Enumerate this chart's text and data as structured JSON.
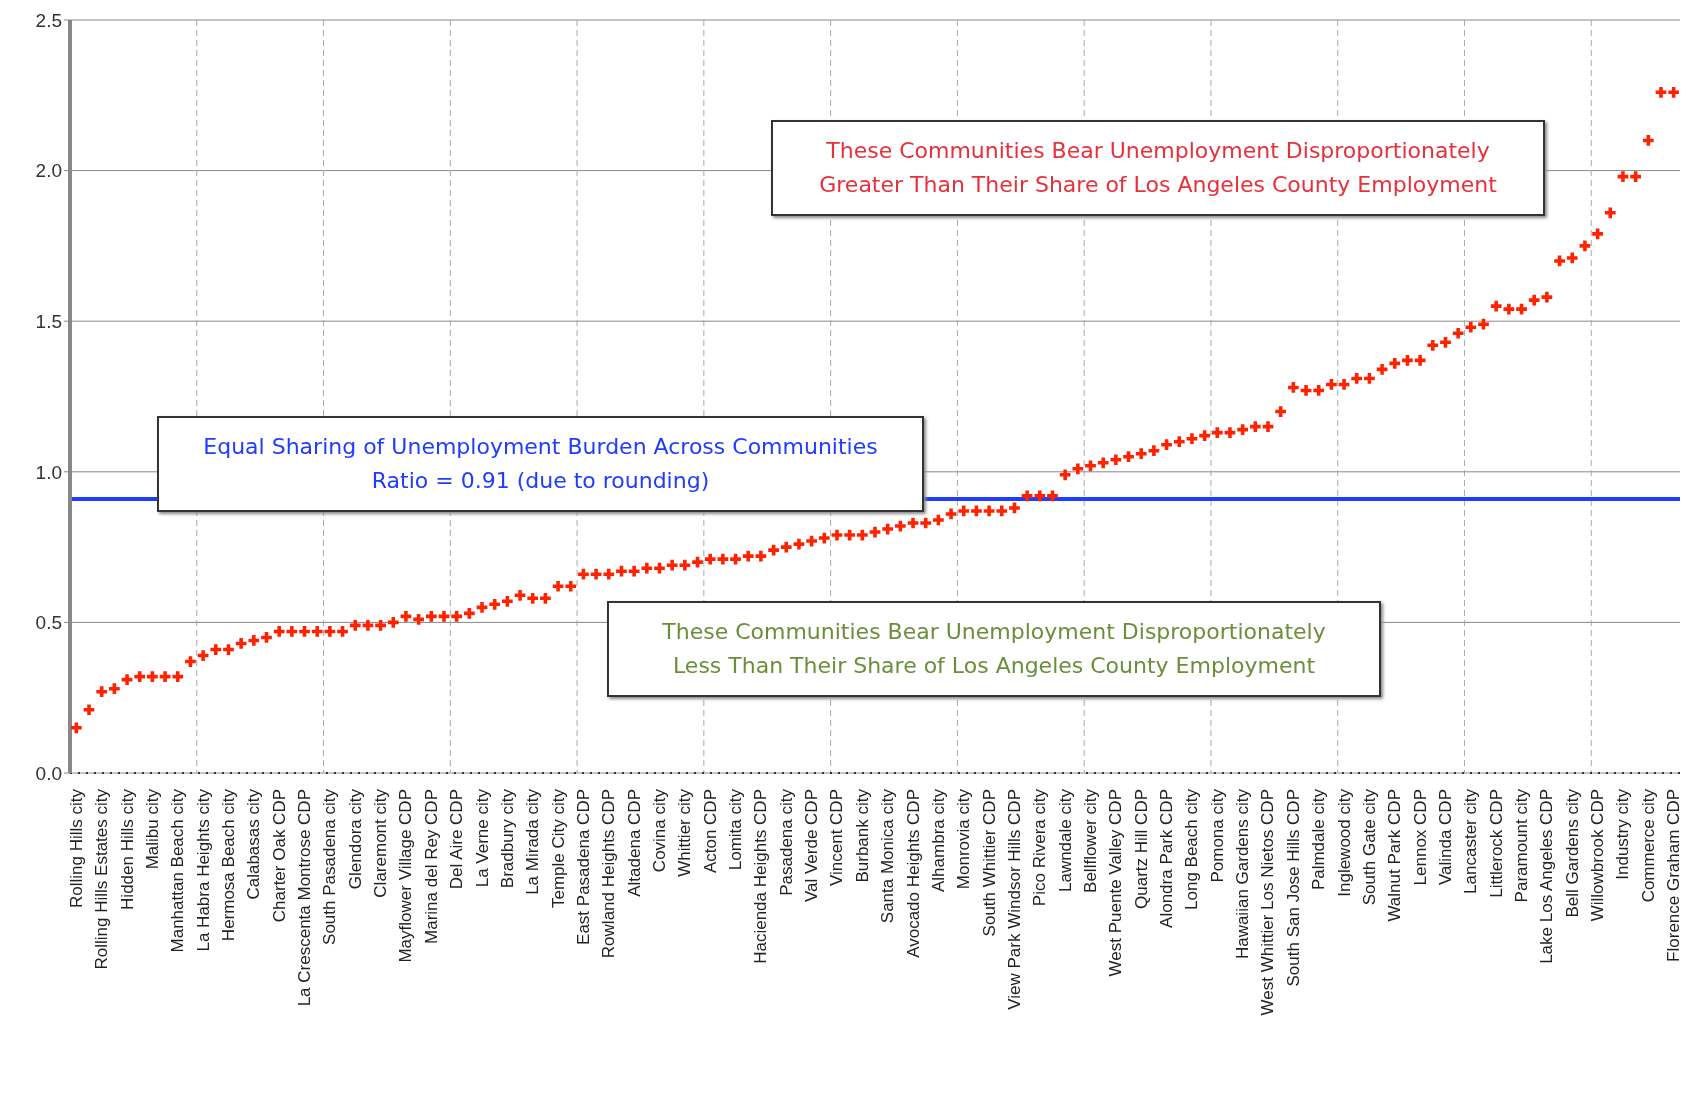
{
  "chart_data": {
    "type": "scatter",
    "marker": "cross",
    "grid": true,
    "categories": [
      "Rolling Hills city",
      null,
      "Rolling Hills Estates city",
      null,
      "Hidden Hills city",
      null,
      "Malibu city",
      null,
      "Manhattan Beach city",
      null,
      "La Habra Heights city",
      null,
      "Hermosa Beach city",
      null,
      "Calabasas city",
      null,
      "Charter Oak CDP",
      null,
      "La Crescenta Montrose CDP",
      null,
      "South Pasadena city",
      null,
      "Glendora city",
      null,
      "Claremont city",
      null,
      "Mayflower Village CDP",
      null,
      "Marina del Rey CDP",
      null,
      "Del Aire CDP",
      null,
      "La Verne city",
      null,
      "Bradbury city",
      null,
      "La Mirada city",
      null,
      "Temple City city",
      null,
      "East Pasadena CDP",
      null,
      "Rowland Heights CDP",
      null,
      "Altadena CDP",
      null,
      "Covina city",
      null,
      "Whittier city",
      null,
      "Acton CDP",
      null,
      "Lomita city",
      null,
      "Hacienda Heights CDP",
      null,
      "Pasadena city",
      null,
      "Val Verde CDP",
      null,
      "Vincent CDP",
      null,
      "Burbank city",
      null,
      "Santa Monica city",
      null,
      "Avocado Heights CDP",
      null,
      "Alhambra city",
      null,
      "Monrovia city",
      null,
      "South Whittier CDP",
      null,
      "View Park Windsor Hills CDP",
      null,
      "Pico Rivera city",
      null,
      "Lawndale city",
      null,
      "Bellflower city",
      null,
      "West Puente Valley CDP",
      null,
      "Quartz Hill CDP",
      null,
      "Alondra Park CDP",
      null,
      "Long Beach city",
      null,
      "Pomona city",
      null,
      "Hawaiian Gardens city",
      null,
      "West Whittier Los Nietos CDP",
      null,
      "South San Jose Hills CDP",
      null,
      "Palmdale city",
      null,
      "Inglewood city",
      null,
      "South Gate city",
      null,
      "Walnut Park CDP",
      null,
      "Lennox CDP",
      null,
      "Valinda CDP",
      null,
      "Lancaster city",
      null,
      "Littlerock CDP",
      null,
      "Paramount city",
      null,
      "Lake Los Angeles CDP",
      null,
      "Bell Gardens city",
      null,
      "Willowbrook CDP",
      null,
      "Industry city",
      null,
      "Commerce city",
      null,
      "Florence Graham CDP"
    ],
    "series": [
      {
        "color": "#ff2200",
        "values": [
          0.15,
          0.21,
          0.27,
          0.28,
          0.31,
          0.32,
          0.32,
          0.32,
          0.32,
          0.37,
          0.39,
          0.41,
          0.41,
          0.43,
          0.44,
          0.45,
          0.47,
          0.47,
          0.47,
          0.47,
          0.47,
          0.47,
          0.49,
          0.49,
          0.49,
          0.5,
          0.52,
          0.51,
          0.52,
          0.52,
          0.52,
          0.53,
          0.55,
          0.56,
          0.57,
          0.59,
          0.58,
          0.58,
          0.62,
          0.62,
          0.66,
          0.66,
          0.66,
          0.67,
          0.67,
          0.68,
          0.68,
          0.69,
          0.69,
          0.7,
          0.71,
          0.71,
          0.71,
          0.72,
          0.72,
          0.74,
          0.75,
          0.76,
          0.77,
          0.78,
          0.79,
          0.79,
          0.79,
          0.8,
          0.81,
          0.82,
          0.83,
          0.83,
          0.84,
          0.86,
          0.87,
          0.87,
          0.87,
          0.87,
          0.88,
          0.92,
          0.92,
          0.92,
          0.99,
          1.01,
          1.02,
          1.03,
          1.04,
          1.05,
          1.06,
          1.07,
          1.09,
          1.1,
          1.11,
          1.12,
          1.13,
          1.13,
          1.14,
          1.15,
          1.15,
          1.2,
          1.28,
          1.27,
          1.27,
          1.29,
          1.29,
          1.31,
          1.31,
          1.34,
          1.36,
          1.37,
          1.37,
          1.42,
          1.43,
          1.46,
          1.48,
          1.49,
          1.55,
          1.54,
          1.54,
          1.57,
          1.58,
          1.7,
          1.71,
          1.75,
          1.79,
          1.86,
          1.98,
          1.98,
          2.1,
          2.26,
          2.26
        ]
      }
    ],
    "ylim": [
      0,
      2.5
    ],
    "yticks": [
      {
        "value": 0,
        "label": "0.0"
      },
      {
        "value": 0.5,
        "label": "0.5"
      },
      {
        "value": 1,
        "label": "1.0"
      },
      {
        "value": 1.5,
        "label": "1.5"
      },
      {
        "value": 2,
        "label": "2.0"
      },
      {
        "value": 2.5,
        "label": "2.5"
      }
    ],
    "ref_lines": [
      {
        "axis": "y",
        "value": 0.91,
        "color": "#1f3cff",
        "label": "Equal Sharing of Unemployment Burden Across Communities\nRatio = 0.91 (due to rounding)"
      }
    ],
    "annotations": [
      "These Communities Bear Unemployment Disproportionately\nGreater Than Their Share of Los Angeles County Employment",
      "These Communities Bear Unemployment Disproportionately\nLess Than Their Share of Los Angeles County Employment"
    ]
  }
}
